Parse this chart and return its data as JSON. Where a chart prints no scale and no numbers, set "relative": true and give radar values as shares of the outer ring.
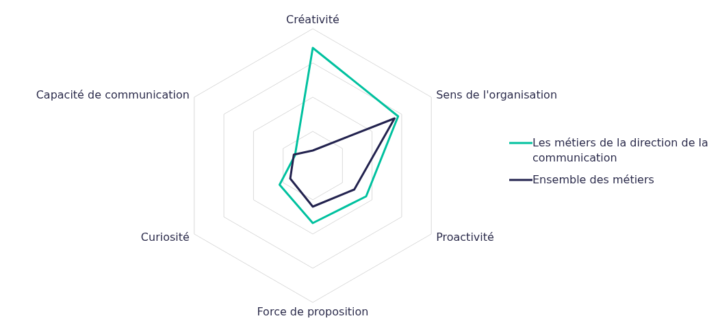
{
  "chart_data": {
    "type": "radar",
    "relative": true,
    "grid": true,
    "legend": "right",
    "marker": "none",
    "categories": [
      "Créativité",
      "Sens de l'organisation",
      "Proactivité",
      "Force de proposition",
      "Curiosité",
      "Capacité de communication"
    ],
    "series": [
      {
        "name": "Les métiers de la direction de la communication",
        "color": "#00c19f",
        "values": [
          0.86,
          0.72,
          0.45,
          0.42,
          0.28,
          0.15
        ]
      },
      {
        "name": "Ensemble des métiers",
        "color": "#23234f",
        "values": [
          0.11,
          0.69,
          0.35,
          0.3,
          0.19,
          0.16
        ]
      }
    ]
  }
}
